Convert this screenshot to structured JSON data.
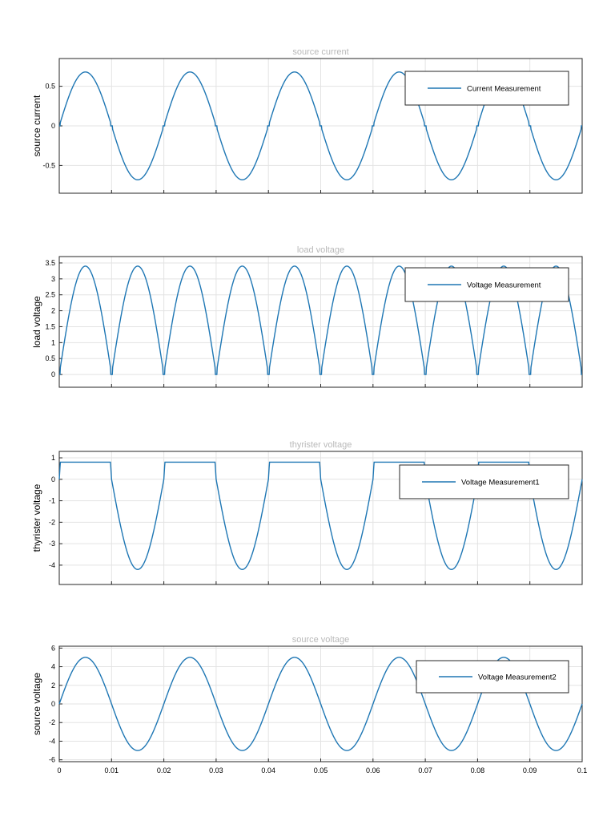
{
  "figure": {
    "background": "#ffffff",
    "line_color": "#1f77b4",
    "grid_color": "#e3e3e3",
    "title_color": "#b9b9b9"
  },
  "chart_data": [
    {
      "type": "line",
      "title": "source current",
      "xlabel": "",
      "ylabel": "source current",
      "xlim": [
        0,
        0.1
      ],
      "ylim": [
        -0.85,
        0.85
      ],
      "yticks": [
        -0.5,
        0,
        0.5
      ],
      "ytick_labels": [
        "-0.5",
        "0",
        "0.5"
      ],
      "xticks": [
        0,
        0.01,
        0.02,
        0.03,
        0.04,
        0.05,
        0.06,
        0.07,
        0.08,
        0.09,
        0.1
      ],
      "xtick_labels": [],
      "grid": true,
      "legend": "top-right",
      "waveform": "half-controlled-current",
      "amplitude": 0.68,
      "frequency_hz": 50,
      "series": [
        {
          "name": "Current Measurement",
          "x": [
            0,
            0.005,
            0.01,
            0.015,
            0.02,
            0.025,
            0.03,
            0.035,
            0.04
          ],
          "y": [
            0,
            0.68,
            0,
            -0.68,
            0,
            0.68,
            0,
            -0.68,
            0
          ]
        }
      ]
    },
    {
      "type": "line",
      "title": "load voltage",
      "xlabel": "",
      "ylabel": "load voltage",
      "xlim": [
        0,
        0.1
      ],
      "ylim": [
        -0.4,
        3.7
      ],
      "yticks": [
        0,
        0.5,
        1,
        1.5,
        2,
        2.5,
        3,
        3.5
      ],
      "ytick_labels": [
        "0",
        "0.5",
        "1",
        "1.5",
        "2",
        "2.5",
        "3",
        "3.5"
      ],
      "xticks": [
        0,
        0.01,
        0.02,
        0.03,
        0.04,
        0.05,
        0.06,
        0.07,
        0.08,
        0.09,
        0.1
      ],
      "xtick_labels": [],
      "grid": true,
      "legend": "top-right",
      "waveform": "rectified-voltage",
      "amplitude": 3.4,
      "frequency_hz": 50,
      "series": [
        {
          "name": "Voltage Measurement",
          "x": [
            0,
            0.005,
            0.01,
            0.015,
            0.02
          ],
          "y": [
            0,
            3.4,
            0,
            3.4,
            0
          ]
        }
      ]
    },
    {
      "type": "line",
      "title": "thyrister voltage",
      "xlabel": "",
      "ylabel": "thyrister voltage",
      "xlim": [
        0,
        0.1
      ],
      "ylim": [
        -4.9,
        1.3
      ],
      "yticks": [
        -4,
        -3,
        -2,
        -1,
        0,
        1
      ],
      "ytick_labels": [
        "-4",
        "-3",
        "-2",
        "-1",
        "0",
        "1"
      ],
      "xticks": [
        0,
        0.01,
        0.02,
        0.03,
        0.04,
        0.05,
        0.06,
        0.07,
        0.08,
        0.09,
        0.1
      ],
      "xtick_labels": [],
      "grid": true,
      "legend": "top-right",
      "waveform": "thyristor-voltage",
      "amplitude": 4.2,
      "clamp": 0.8,
      "frequency_hz": 50,
      "series": [
        {
          "name": "Voltage Measurement1",
          "x": [
            0,
            0.005,
            0.01,
            0.015,
            0.02
          ],
          "y": [
            0,
            0.8,
            0.8,
            -4.2,
            0
          ]
        }
      ]
    },
    {
      "type": "line",
      "title": "source voltage",
      "xlabel": "",
      "ylabel": "source voltage",
      "xlim": [
        0,
        0.1
      ],
      "ylim": [
        -6.2,
        6.2
      ],
      "yticks": [
        -6,
        -4,
        -2,
        0,
        2,
        4,
        6
      ],
      "ytick_labels": [
        "-6",
        "-4",
        "-2",
        "0",
        "2",
        "4",
        "6"
      ],
      "xticks": [
        0,
        0.01,
        0.02,
        0.03,
        0.04,
        0.05,
        0.06,
        0.07,
        0.08,
        0.09,
        0.1
      ],
      "xtick_labels": [
        "0",
        "0.01",
        "0.02",
        "0.03",
        "0.04",
        "0.05",
        "0.06",
        "0.07",
        "0.08",
        "0.09",
        "0.1"
      ],
      "grid": true,
      "legend": "top-right",
      "waveform": "sine",
      "amplitude": 5,
      "frequency_hz": 50,
      "series": [
        {
          "name": "Voltage Measurement2",
          "x": [
            0,
            0.005,
            0.01,
            0.015,
            0.02
          ],
          "y": [
            0,
            5,
            0,
            -5,
            0
          ]
        }
      ]
    }
  ]
}
